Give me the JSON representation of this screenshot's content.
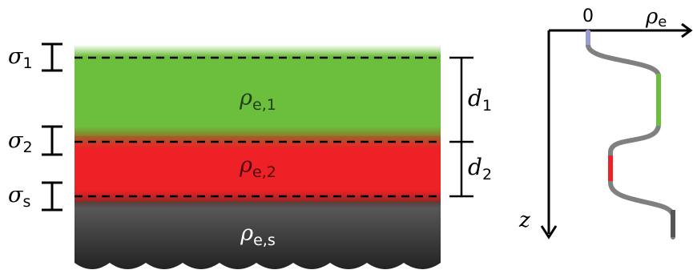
{
  "layers": {
    "top": {
      "symbol": "ρ",
      "sub": "e,1",
      "color": "#6cbf3c"
    },
    "middle": {
      "symbol": "ρ",
      "sub": "e,2",
      "color": "#ee2127"
    },
    "substrate": {
      "symbol": "ρ",
      "sub": "e,s",
      "color": "#2b2b2b"
    }
  },
  "roughness": [
    {
      "symbol": "σ",
      "sub": "1"
    },
    {
      "symbol": "σ",
      "sub": "2"
    },
    {
      "symbol": "σ",
      "sub": "s"
    }
  ],
  "thickness": [
    {
      "symbol": "d",
      "sub": "1"
    },
    {
      "symbol": "d",
      "sub": "2"
    }
  ],
  "profile_axes": {
    "origin_label": "0",
    "x_symbol": "ρ",
    "x_sub": "e",
    "z_label": "z"
  },
  "colors": {
    "surface_top": "#8fd4ff",
    "profile_line": "#808080",
    "axis": "#000000"
  }
}
